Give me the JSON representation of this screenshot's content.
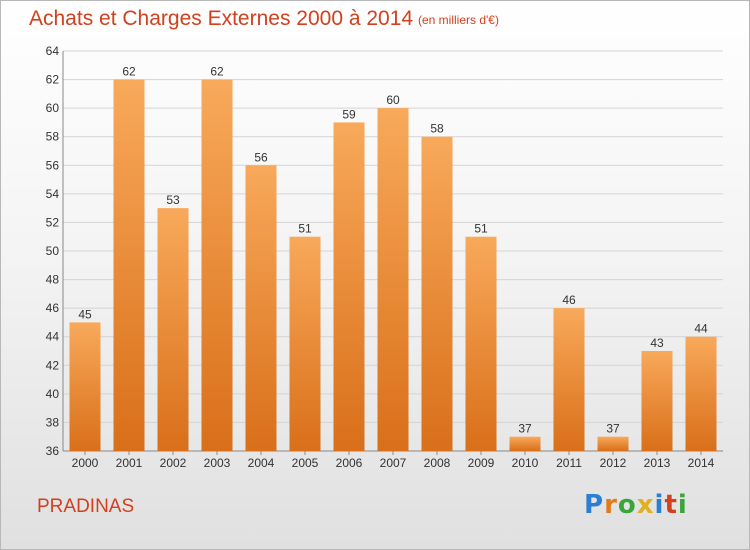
{
  "title": "Achats et Charges Externes 2000 à 2014",
  "subtitle": "(en milliers d'€)",
  "commune": "PRADINAS",
  "logo": {
    "letters": [
      "P",
      "r",
      "o",
      "x",
      "i",
      "t",
      "i"
    ],
    "colors": [
      "#2a7fd4",
      "#e07b1c",
      "#3aa63a",
      "#e0b020",
      "#2a7fd4",
      "#d2401e",
      "#3aa63a"
    ]
  },
  "colors": {
    "bar_light": "#f8a95a",
    "bar_dark": "#d96f1a",
    "title": "#d2401e",
    "grid": "#d4d4d4"
  },
  "chart_data": {
    "type": "bar",
    "categories": [
      "2000",
      "2001",
      "2002",
      "2003",
      "2004",
      "2005",
      "2006",
      "2007",
      "2008",
      "2009",
      "2010",
      "2011",
      "2012",
      "2013",
      "2014"
    ],
    "values": [
      45,
      62,
      53,
      62,
      56,
      51,
      59,
      60,
      58,
      51,
      37,
      46,
      37,
      43,
      44
    ],
    "title": "Achats et Charges Externes 2000 à 2014",
    "xlabel": "",
    "ylabel": "",
    "ylim": [
      36,
      64
    ],
    "yticks": [
      36,
      38,
      40,
      42,
      44,
      46,
      48,
      50,
      52,
      54,
      56,
      58,
      60,
      62,
      64
    ],
    "grid": true
  }
}
